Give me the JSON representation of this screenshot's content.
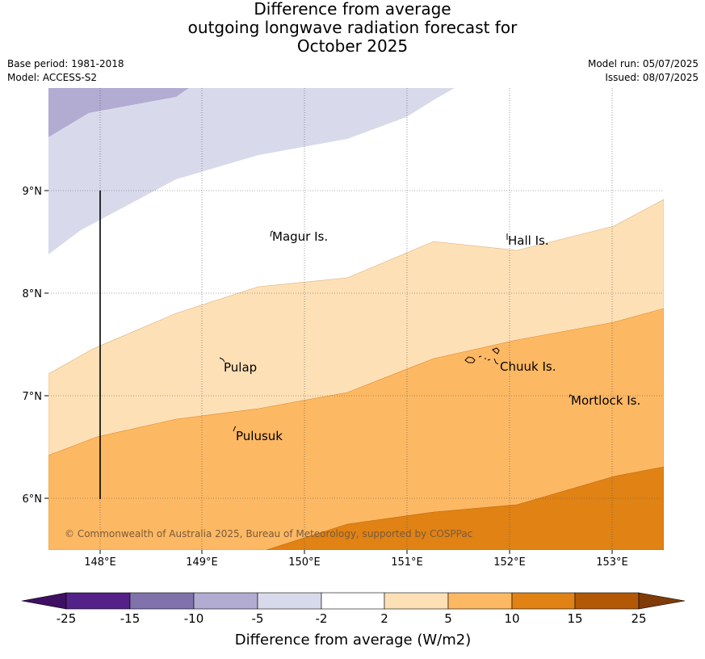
{
  "title": {
    "line1": "Difference from average",
    "line2": "outgoing longwave radiation forecast for",
    "line3": "October 2025"
  },
  "meta": {
    "base_period": "Base period: 1981-2018",
    "model": "Model: ACCESS-S2",
    "model_run": "Model run: 05/07/2025",
    "issued": "Issued: 08/07/2025"
  },
  "map": {
    "x_ticks": [
      "148°E",
      "149°E",
      "150°E",
      "151°E",
      "152°E",
      "153°E"
    ],
    "y_ticks": [
      "9°N",
      "8°N",
      "7°N",
      "6°N"
    ],
    "places": [
      "Magur Is.",
      "Hall Is.",
      "Pulap",
      "Chuuk Is.",
      "Mortlock Is.",
      "Pulusuk"
    ],
    "copyright": "© Commonwealth of Australia 2025, Bureau of Meteorology, supported by COSPPac"
  },
  "colorbar": {
    "ticks": [
      "-25",
      "-15",
      "-10",
      "-5",
      "-2",
      "2",
      "5",
      "10",
      "15",
      "25"
    ],
    "label": "Difference from average (W/m2)",
    "colors": [
      "#3f0f63",
      "#542188",
      "#8073ac",
      "#b2abd2",
      "#d8daeb",
      "#ffffff",
      "#fee0b6",
      "#fdb863",
      "#e08214",
      "#b35806",
      "#7f3b08"
    ]
  }
}
